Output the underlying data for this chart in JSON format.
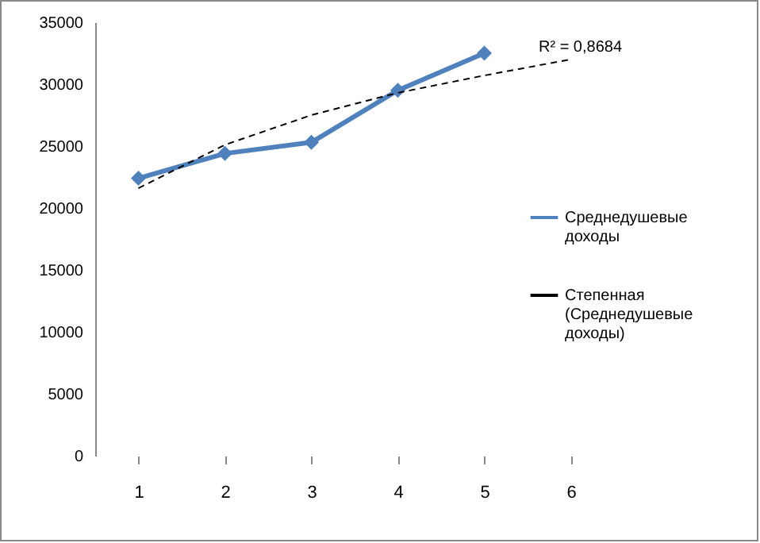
{
  "chart_data": {
    "type": "line",
    "categories": [
      "1",
      "2",
      "3",
      "4",
      "5",
      "6"
    ],
    "series": [
      {
        "name": "Среднедушевые доходы",
        "color": "#4f81bd",
        "values": [
          22400,
          24400,
          25300,
          29500,
          32500,
          null
        ],
        "marker": "diamond"
      },
      {
        "name": "Степенная (Среднедушевые доходы)",
        "color": "#000000",
        "values": [
          21600,
          25100,
          27500,
          29300,
          30700,
          32000
        ],
        "line_style": "dashed",
        "marker": "none"
      }
    ],
    "annotations": [
      {
        "text": "R² = 0,8684",
        "x": "6",
        "y": 32000
      }
    ],
    "ylim": [
      0,
      35000
    ],
    "yticks": [
      0,
      5000,
      10000,
      15000,
      20000,
      25000,
      30000,
      35000
    ],
    "grid": false,
    "legend": "right"
  }
}
